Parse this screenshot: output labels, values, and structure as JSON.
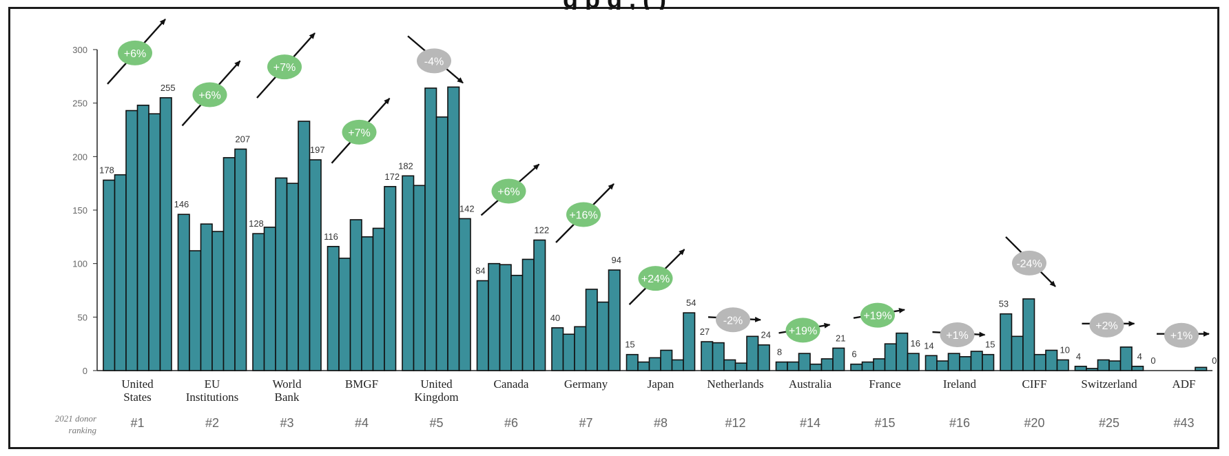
{
  "chart_data": {
    "type": "bar",
    "title": "",
    "title_partial": "g   p                g ,                 (                    )",
    "ylim": [
      0,
      300
    ],
    "yticks": [
      0,
      50,
      100,
      150,
      200,
      250,
      300
    ],
    "grid": false,
    "legend": "none",
    "colors": {
      "bar": "#3a8f9a",
      "bar_edge": "#111111",
      "bubble_up": "#7bc67b",
      "bubble_down": "#b8b8b8",
      "arrow": "#111111"
    },
    "rank_caption": "2021 donor ranking",
    "groups": [
      {
        "name": [
          "United",
          "States"
        ],
        "rank": "#1",
        "values": [
          178,
          183,
          243,
          248,
          240,
          255
        ],
        "first_label": "178",
        "last_label": "255",
        "change": "+6%",
        "direction": "up"
      },
      {
        "name": [
          "EU",
          "Institutions"
        ],
        "rank": "#2",
        "values": [
          146,
          112,
          137,
          130,
          199,
          207
        ],
        "first_label": "146",
        "last_label": "207",
        "change": "+6%",
        "direction": "up"
      },
      {
        "name": [
          "World",
          "Bank"
        ],
        "rank": "#3",
        "values": [
          128,
          134,
          180,
          175,
          233,
          197
        ],
        "first_label": "128",
        "last_label": "197",
        "change": "+7%",
        "direction": "up"
      },
      {
        "name": [
          "BMGF"
        ],
        "rank": "#4",
        "values": [
          116,
          105,
          141,
          125,
          133,
          172
        ],
        "first_label": "116",
        "last_label": "172",
        "change": "+7%",
        "direction": "up"
      },
      {
        "name": [
          "United",
          "Kingdom"
        ],
        "rank": "#5",
        "values": [
          182,
          173,
          264,
          237,
          265,
          142
        ],
        "first_label": "182",
        "last_label": "142",
        "change": "-4%",
        "direction": "down"
      },
      {
        "name": [
          "Canada"
        ],
        "rank": "#6",
        "values": [
          84,
          100,
          99,
          89,
          104,
          122
        ],
        "first_label": "84",
        "last_label": "122",
        "change": "+6%",
        "direction": "up"
      },
      {
        "name": [
          "Germany"
        ],
        "rank": "#7",
        "values": [
          40,
          34,
          41,
          76,
          64,
          94
        ],
        "first_label": "40",
        "last_label": "94",
        "change": "+16%",
        "direction": "up"
      },
      {
        "name": [
          "Japan"
        ],
        "rank": "#8",
        "values": [
          15,
          8,
          12,
          19,
          10,
          54
        ],
        "first_label": "15",
        "last_label": "54",
        "change": "+24%",
        "direction": "up"
      },
      {
        "name": [
          "Netherlands"
        ],
        "rank": "#12",
        "values": [
          27,
          26,
          10,
          7,
          32,
          24
        ],
        "first_label": "27",
        "last_label": "24",
        "change": "-2%",
        "direction": "flat"
      },
      {
        "name": [
          "Australia"
        ],
        "rank": "#14",
        "values": [
          8,
          8,
          16,
          6,
          11,
          21
        ],
        "first_label": "8",
        "last_label": "21",
        "change": "+19%",
        "direction": "slight-up"
      },
      {
        "name": [
          "France"
        ],
        "rank": "#15",
        "values": [
          6,
          8,
          11,
          25,
          35,
          16
        ],
        "first_label": "6",
        "last_label": "16",
        "change": "+19%",
        "direction": "slight-up"
      },
      {
        "name": [
          "Ireland"
        ],
        "rank": "#16",
        "values": [
          14,
          9,
          16,
          13,
          18,
          15
        ],
        "first_label": "14",
        "last_label": "15",
        "change": "+1%",
        "direction": "flat"
      },
      {
        "name": [
          "CIFF"
        ],
        "rank": "#20",
        "values": [
          53,
          32,
          67,
          15,
          19,
          10
        ],
        "first_label": "53",
        "last_label": "10",
        "change": "-24%",
        "direction": "down"
      },
      {
        "name": [
          "Switzerland"
        ],
        "rank": "#25",
        "values": [
          4,
          2,
          10,
          9,
          22,
          4
        ],
        "first_label": "4",
        "last_label": "4",
        "change": "+2%",
        "direction": "flat"
      },
      {
        "name": [
          "ADF"
        ],
        "rank": "#43",
        "values": [
          0,
          0,
          0,
          0,
          3,
          0
        ],
        "first_label": "0",
        "last_label": "0",
        "change": "+1%",
        "direction": "flat"
      }
    ]
  }
}
